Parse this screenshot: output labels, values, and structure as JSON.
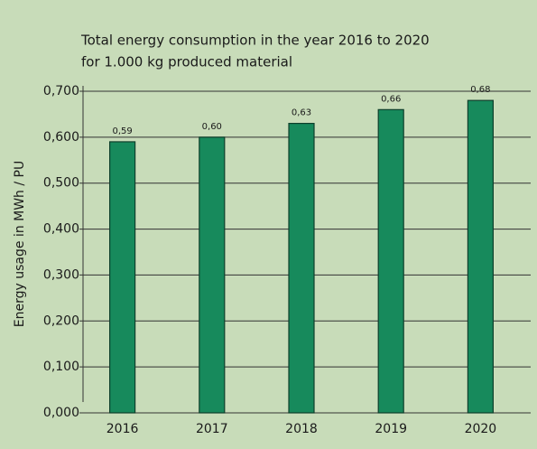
{
  "chart_data": {
    "type": "bar",
    "title": "Total energy consumption in the year 2016 to 2020",
    "subtitle": "for 1.000 kg produced material",
    "y_label": "Energy usage in MWh / PU",
    "categories": [
      "2016",
      "2017",
      "2018",
      "2019",
      "2020"
    ],
    "values": [
      0.59,
      0.6,
      0.63,
      0.66,
      0.68
    ],
    "value_labels": [
      "0,59",
      "0,60",
      "0,63",
      "0,66",
      "0,68"
    ],
    "color": "#178a5c",
    "ylim": [
      0,
      0.7
    ],
    "yticks": [
      {
        "value": 0,
        "label": "0,000"
      },
      {
        "value": 0.1,
        "label": "0,100"
      },
      {
        "value": 0.2,
        "label": "0,200"
      },
      {
        "value": 0.3,
        "label": "0,300"
      },
      {
        "value": 0.4,
        "label": "0,400"
      },
      {
        "value": 0.5,
        "label": "0,500"
      },
      {
        "value": 0.6,
        "label": "0,600"
      },
      {
        "value": 0.7,
        "label": "0,700"
      }
    ],
    "grid": true
  }
}
